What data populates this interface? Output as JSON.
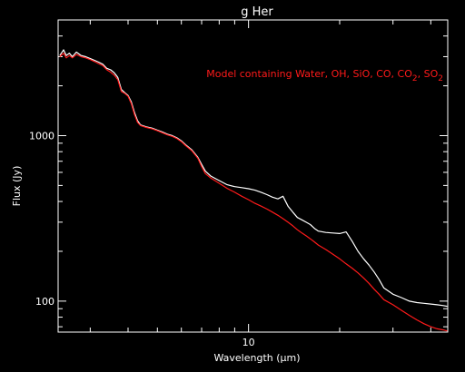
{
  "chart_data": {
    "type": "line",
    "title": "g Her",
    "xlabel": "Wavelength (μm)",
    "ylabel": "Flux (Jy)",
    "x_scale": "log",
    "y_scale": "log",
    "xlim": [
      2.35,
      45.5
    ],
    "ylim": [
      65,
      5000
    ],
    "x_ticks": [
      10
    ],
    "y_ticks": [
      100,
      1000
    ],
    "grid": false,
    "annotation": {
      "text": "Model containing Water, OH, SiO, CO, CO",
      "sub1": "2",
      "mid": ", SO",
      "sub2": "2",
      "color": "#ff1a1a"
    },
    "series": [
      {
        "color": "#ffffff",
        "x": [
          2.38,
          2.45,
          2.5,
          2.56,
          2.62,
          2.7,
          2.8,
          2.9,
          3.0,
          3.1,
          3.2,
          3.3,
          3.4,
          3.5,
          3.6,
          3.7,
          3.8,
          3.9,
          4.0,
          4.1,
          4.2,
          4.3,
          4.4,
          4.6,
          4.8,
          5.0,
          5.2,
          5.4,
          5.6,
          5.8,
          6.0,
          6.2,
          6.5,
          6.8,
          7.0,
          7.2,
          7.5,
          8.0,
          8.5,
          9.0,
          9.5,
          10.0,
          10.5,
          11.0,
          11.5,
          12.0,
          12.5,
          13.0,
          13.5,
          14.0,
          14.5,
          15.0,
          15.5,
          16.0,
          16.5,
          17.0,
          18.0,
          19.0,
          20.0,
          21.0,
          22.0,
          23.0,
          24.0,
          25.0,
          26.0,
          27.0,
          28.0,
          30.0,
          32.0,
          34.0,
          36.0,
          38.0,
          40.0,
          42.0,
          44.0,
          45.3
        ],
        "y": [
          3050,
          3300,
          3050,
          3150,
          3000,
          3200,
          3050,
          3000,
          2920,
          2850,
          2780,
          2700,
          2550,
          2500,
          2400,
          2250,
          1900,
          1820,
          1750,
          1600,
          1380,
          1230,
          1160,
          1130,
          1110,
          1080,
          1050,
          1020,
          1000,
          970,
          930,
          880,
          820,
          740,
          670,
          610,
          570,
          535,
          505,
          492,
          485,
          478,
          468,
          455,
          440,
          425,
          415,
          430,
          375,
          345,
          320,
          310,
          300,
          290,
          275,
          265,
          260,
          258,
          256,
          262,
          230,
          200,
          180,
          165,
          150,
          135,
          120,
          110,
          105,
          100,
          98,
          97,
          96,
          95,
          94,
          93
        ]
      },
      {
        "color": "#ff1a1a",
        "x": [
          2.38,
          2.45,
          2.5,
          2.56,
          2.62,
          2.7,
          2.8,
          2.9,
          3.0,
          3.1,
          3.2,
          3.3,
          3.4,
          3.5,
          3.6,
          3.7,
          3.8,
          3.9,
          4.0,
          4.1,
          4.2,
          4.3,
          4.4,
          4.6,
          4.8,
          5.0,
          5.2,
          5.4,
          5.6,
          5.8,
          6.0,
          6.2,
          6.5,
          6.8,
          7.0,
          7.2,
          7.5,
          8.0,
          8.5,
          9.0,
          9.5,
          10.0,
          10.5,
          11.0,
          11.5,
          12.0,
          12.5,
          13.0,
          13.5,
          14.0,
          14.5,
          15.0,
          15.5,
          16.0,
          16.5,
          17.0,
          18.0,
          19.0,
          20.0,
          21.0,
          22.0,
          23.0,
          24.0,
          25.0,
          26.0,
          27.0,
          28.0,
          30.0,
          32.0,
          34.0,
          36.0,
          38.0,
          40.0,
          42.0,
          44.0,
          45.3
        ],
        "y": [
          3000,
          3150,
          2950,
          3050,
          2950,
          3100,
          3000,
          2950,
          2880,
          2800,
          2720,
          2650,
          2500,
          2420,
          2320,
          2180,
          1850,
          1800,
          1730,
          1560,
          1340,
          1200,
          1150,
          1120,
          1100,
          1070,
          1040,
          1010,
          990,
          960,
          920,
          870,
          810,
          730,
          650,
          590,
          555,
          515,
          480,
          455,
          430,
          410,
          390,
          375,
          360,
          345,
          330,
          315,
          300,
          285,
          270,
          258,
          248,
          238,
          228,
          218,
          205,
          192,
          180,
          168,
          158,
          148,
          138,
          128,
          118,
          110,
          102,
          95,
          88,
          82,
          77,
          73,
          70,
          68,
          67,
          66
        ]
      }
    ]
  }
}
